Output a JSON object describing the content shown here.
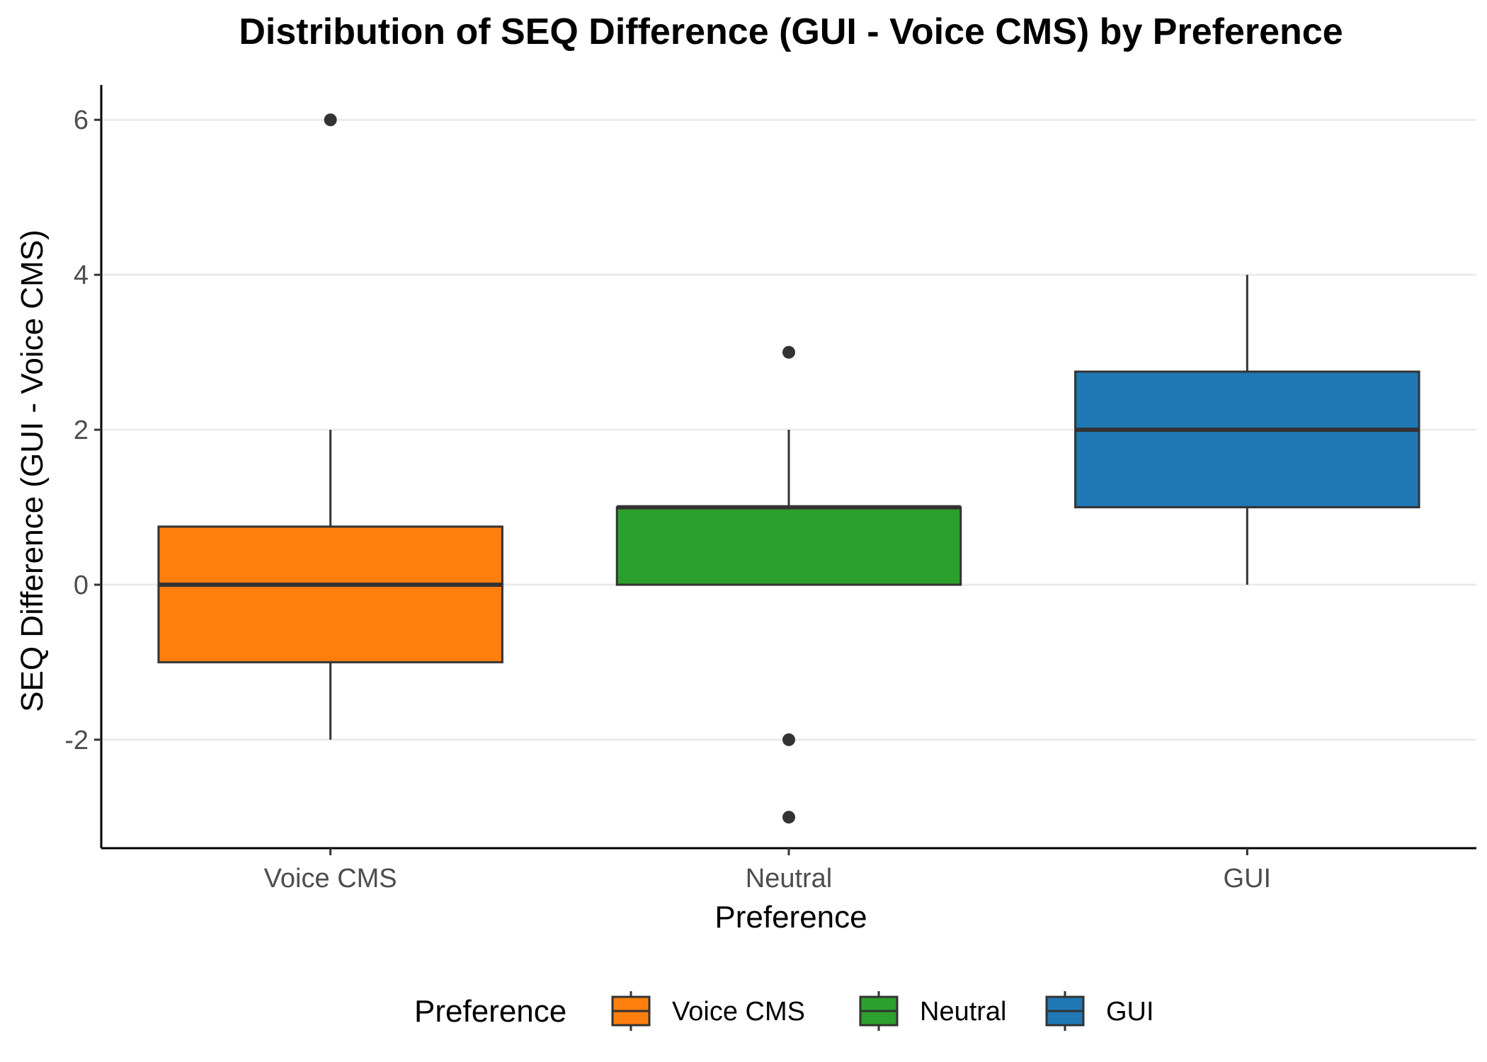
{
  "chart_data": {
    "type": "boxplot",
    "title": "Distribution of SEQ Difference (GUI - Voice CMS) by Preference",
    "xlabel": "Preference",
    "ylabel": "SEQ Difference (GUI - Voice CMS)",
    "ylim": [
      -3.4,
      6.45
    ],
    "yticks": [
      6,
      4,
      2,
      0,
      -2
    ],
    "ytick_labels": [
      "6",
      "4",
      "2",
      "0",
      "-2"
    ],
    "grid": "horizontal major",
    "legend": {
      "title": "Preference",
      "position": "bottom"
    },
    "categories": [
      "Voice CMS",
      "Neutral",
      "GUI"
    ],
    "series": [
      {
        "name": "Voice CMS",
        "color": "#ff7f0e",
        "whisker_low": -2,
        "q1": -1,
        "median": 0,
        "q3": 0.75,
        "whisker_high": 2,
        "outliers": [
          6
        ]
      },
      {
        "name": "Neutral",
        "color": "#2ca02c",
        "whisker_low": 0,
        "q1": 0,
        "median": 1,
        "q3": 1,
        "whisker_high": 2,
        "outliers": [
          3,
          -2,
          -3
        ]
      },
      {
        "name": "GUI",
        "color": "#1f77b4",
        "whisker_low": 0,
        "q1": 1,
        "median": 2,
        "q3": 2.75,
        "whisker_high": 4,
        "outliers": []
      }
    ]
  }
}
